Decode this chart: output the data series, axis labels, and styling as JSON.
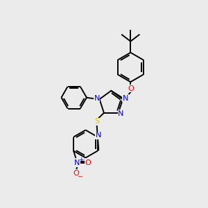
{
  "background_color": "#ebebeb",
  "atom_colors": {
    "N": "#0000ff",
    "O": "#ff0000",
    "S": "#cccc00",
    "C": "#000000"
  },
  "figsize": [
    3.0,
    3.0
  ],
  "dpi": 100,
  "line_width": 1.4,
  "font_size": 7.5
}
